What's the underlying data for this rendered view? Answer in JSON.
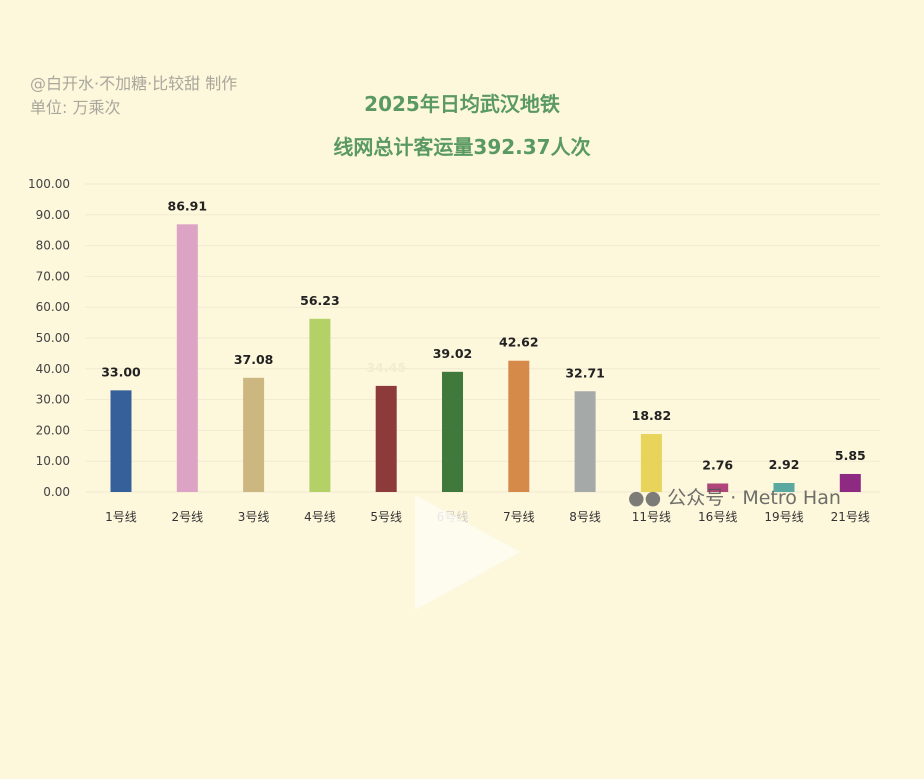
{
  "credit": {
    "author": "@白开水·不加糖·比较甜 制作",
    "unit": "单位:  万乘次"
  },
  "watermark": "公众号 · Metro Han",
  "chart_data": {
    "type": "bar",
    "title": [
      "2025年日均武汉地铁",
      "线网总计客运量392.37人次"
    ],
    "categories": [
      "1号线",
      "2号线",
      "3号线",
      "4号线",
      "5号线",
      "6号线",
      "7号线",
      "8号线",
      "11号线",
      "16号线",
      "19号线",
      "21号线"
    ],
    "values": [
      33.0,
      86.91,
      37.08,
      56.23,
      34.45,
      39.02,
      42.62,
      32.71,
      18.82,
      2.76,
      2.92,
      5.85
    ],
    "labels": [
      "33.00",
      "86.91",
      "37.08",
      "56.23",
      "34.45",
      "39.02",
      "42.62",
      "32.71",
      "18.82",
      "2.76",
      "2.92",
      "5.85"
    ],
    "colors": [
      "#35609a",
      "#dca3c4",
      "#cdb780",
      "#b4d168",
      "#8c3a3a",
      "#3f7a3c",
      "#d58a4a",
      "#a5aaa8",
      "#e8d45a",
      "#b0457a",
      "#5aa8a0",
      "#8e2a82"
    ],
    "yticks": [
      "0.00",
      "10.00",
      "20.00",
      "30.00",
      "40.00",
      "50.00",
      "60.00",
      "70.00",
      "80.00",
      "90.00",
      "100.00"
    ],
    "ylim": [
      0,
      100
    ],
    "xlabel": "",
    "ylabel": "",
    "grid": true
  }
}
